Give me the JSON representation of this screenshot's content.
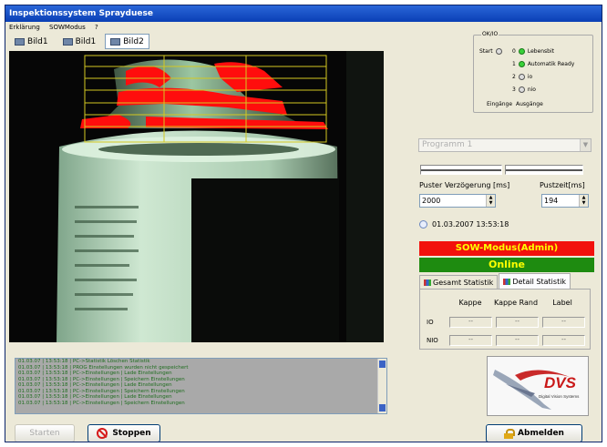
{
  "window": {
    "title": "Inspektionssystem Sprayduese"
  },
  "menu": [
    "Erklärung",
    "SOWModus",
    "?"
  ],
  "view_tabs": [
    {
      "label": "Bild1"
    },
    {
      "label": "Bild1"
    },
    {
      "label": "Bild2"
    }
  ],
  "view_tabs_active": 2,
  "io": {
    "title": "OK/IO",
    "start_label": "Start",
    "outputs": [
      {
        "num": "0",
        "label": "Lebensbit",
        "on": true
      },
      {
        "num": "1",
        "label": "Automatik Ready",
        "on": true
      },
      {
        "num": "2",
        "label": "io",
        "on": false
      },
      {
        "num": "3",
        "label": "nio",
        "on": false
      }
    ],
    "footer_left": "Eingänge",
    "footer_right": "Ausgänge"
  },
  "program": {
    "value": "Programm 1"
  },
  "puster": {
    "label": "Puster Verzögerung [ms]",
    "value": "2000"
  },
  "pustzeit": {
    "label": "Pustzeit[ms]",
    "value": "194"
  },
  "datetime": "01.03.2007 13:53:18",
  "status": {
    "mode": "SOW-Modus(Admin)",
    "online": "Online"
  },
  "stats": {
    "tabs": [
      "Gesamt Statistik",
      "Detail Statistik"
    ],
    "active_tab": 1,
    "columns": [
      "Kappe",
      "Kappe Rand",
      "Label"
    ],
    "rows": [
      {
        "label": "IO",
        "values": [
          "--",
          "--",
          "--"
        ]
      },
      {
        "label": "NIO",
        "values": [
          "--",
          "--",
          "--"
        ]
      }
    ]
  },
  "log": [
    "01.03.07 | 13:53:18 | PC->Statistik Löschen Statistik",
    "01.03.07 | 13:53:18 | PROG Einstellungen wurden nicht gespeichert",
    "01.03.07 | 13:53:18 | PC->Einstellungen | Lade Einstellungen",
    "01.03.07 | 13:53:18 | PC->Einstellungen | Speichern Einstellungen",
    "01.03.07 | 13:53:18 | PC->Einstellungen | Lade Einstellungen",
    "01.03.07 | 13:53:18 | PC->Einstellungen | Speichern Einstellungen",
    "01.03.07 | 13:53:18 | PC->Einstellungen | Lade Einstellungen",
    "01.03.07 | 13:53:18 | PC->Einstellungen | Speichern Einstellungen"
  ],
  "logo": {
    "text": "DVS",
    "tagline": "Digital Vision Systems"
  },
  "buttons": {
    "start": "Starten",
    "stop": "Stoppen",
    "abmelden": "Abmelden"
  },
  "colors": {
    "error": "#f2110c",
    "online": "#1e8b10",
    "status_text": "#ffff00",
    "title_bar": "#0a3fb5"
  }
}
